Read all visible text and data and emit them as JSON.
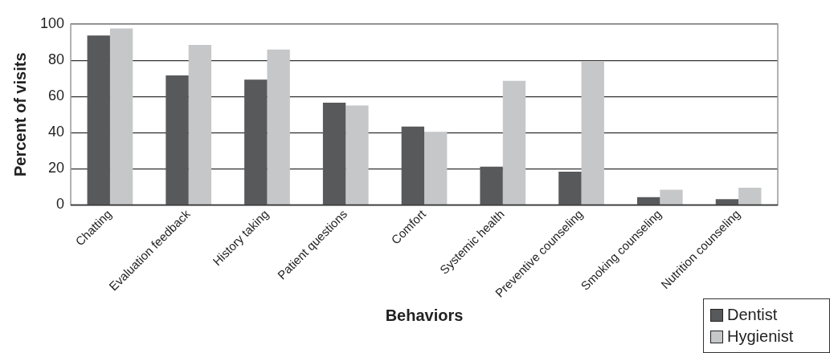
{
  "chart_data": {
    "type": "bar",
    "xlabel": "Behaviors",
    "ylabel": "Percent of visits",
    "categories": [
      "Chatting",
      "Evaluation feedback",
      "History taking",
      "Patient questions",
      "Comfort",
      "Systemic health",
      "Preventive counseling",
      "Smoking counseling",
      "Nutrition counseling"
    ],
    "series": [
      {
        "name": "Dentist",
        "color": "#58595b",
        "values": [
          93.7,
          71.6,
          69.3,
          56.5,
          43.3,
          21.2,
          18.4,
          4.3,
          3.2
        ]
      },
      {
        "name": "Hygienist",
        "color": "#c6c7c9",
        "values": [
          97.6,
          88.5,
          85.9,
          55,
          40.5,
          68.6,
          79.4,
          8.4,
          9.5
        ]
      }
    ],
    "ylim": [
      0,
      100
    ],
    "yticks": [
      0,
      20,
      40,
      60,
      80,
      100
    ],
    "grid": "y",
    "legend": "bottom right"
  }
}
